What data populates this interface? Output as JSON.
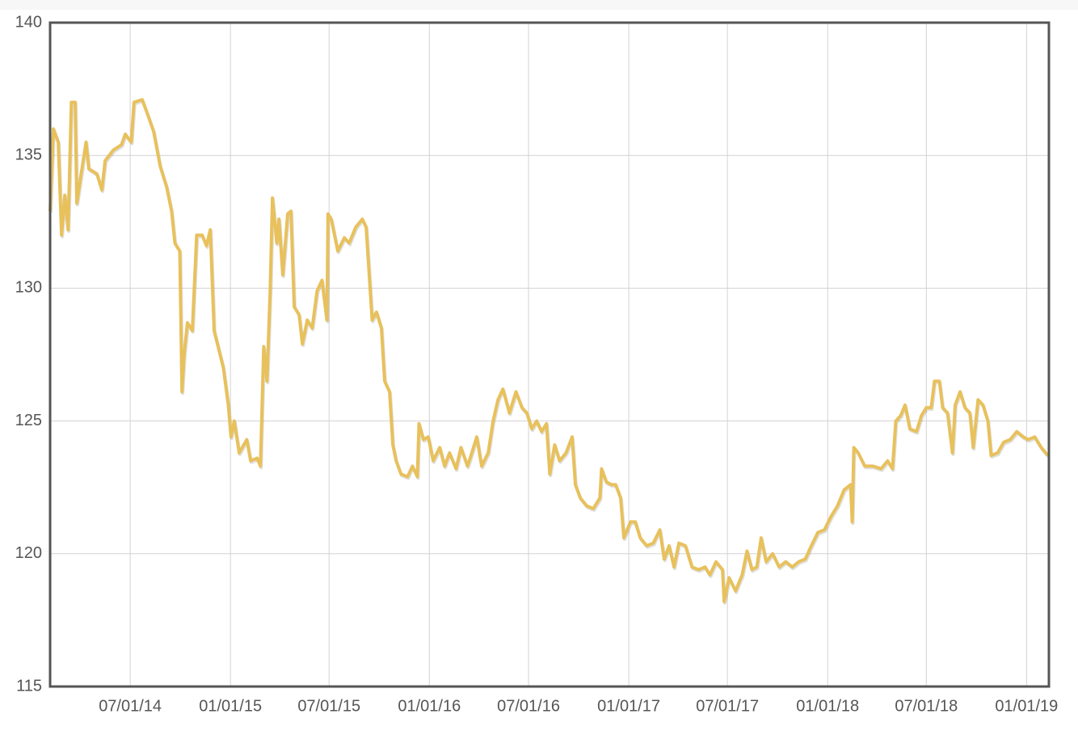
{
  "chart_data": {
    "type": "line",
    "color": "#e8c15c",
    "grid": true,
    "xlim": [
      "2014-02-04",
      "2019-02-11"
    ],
    "xticks": [
      {
        "value": "2014-07-01",
        "label": "07/01/14"
      },
      {
        "value": "2015-01-01",
        "label": "01/01/15"
      },
      {
        "value": "2015-07-01",
        "label": "07/01/15"
      },
      {
        "value": "2016-01-01",
        "label": "01/01/16"
      },
      {
        "value": "2016-07-01",
        "label": "07/01/16"
      },
      {
        "value": "2017-01-01",
        "label": "01/01/17"
      },
      {
        "value": "2017-07-01",
        "label": "07/01/17"
      },
      {
        "value": "2018-01-01",
        "label": "01/01/18"
      },
      {
        "value": "2018-07-01",
        "label": "07/01/18"
      },
      {
        "value": "2019-01-01",
        "label": "01/01/19"
      }
    ],
    "ylim": [
      115,
      140
    ],
    "yticks": [
      115,
      120,
      125,
      130,
      135,
      140
    ],
    "x": [
      "2014-02-04",
      "2014-02-10",
      "2014-02-19",
      "2014-02-25",
      "2014-03-03",
      "2014-03-09",
      "2014-03-15",
      "2014-03-22",
      "2014-03-25",
      "2014-04-02",
      "2014-04-11",
      "2014-04-16",
      "2014-05-01",
      "2014-05-10",
      "2014-05-16",
      "2014-05-31",
      "2014-06-15",
      "2014-06-22",
      "2014-07-03",
      "2014-07-08",
      "2014-07-23",
      "2014-08-01",
      "2014-08-13",
      "2014-08-25",
      "2014-09-06",
      "2014-09-15",
      "2014-09-21",
      "2014-09-30",
      "2014-10-04",
      "2014-10-08",
      "2014-10-14",
      "2014-10-23",
      "2014-10-31",
      "2014-11-10",
      "2014-11-18",
      "2014-11-25",
      "2014-12-02",
      "2014-12-13",
      "2014-12-19",
      "2014-12-28",
      "2015-01-02",
      "2015-01-08",
      "2015-01-17",
      "2015-01-31",
      "2015-02-07",
      "2015-02-19",
      "2015-02-25",
      "2015-03-03",
      "2015-03-09",
      "2015-03-15",
      "2015-03-19",
      "2015-03-27",
      "2015-03-31",
      "2015-04-07",
      "2015-04-16",
      "2015-04-22",
      "2015-04-28",
      "2015-05-07",
      "2015-05-13",
      "2015-05-22",
      "2015-05-31",
      "2015-06-09",
      "2015-06-18",
      "2015-06-27",
      "2015-06-29",
      "2015-07-05",
      "2015-07-17",
      "2015-07-29",
      "2015-08-07",
      "2015-08-19",
      "2015-08-31",
      "2015-09-07",
      "2015-09-18",
      "2015-09-26",
      "2015-10-05",
      "2015-10-11",
      "2015-10-20",
      "2015-10-26",
      "2015-11-01",
      "2015-11-10",
      "2015-11-22",
      "2015-12-01",
      "2015-12-10",
      "2015-12-13",
      "2015-12-21",
      "2015-12-30",
      "2016-01-08",
      "2016-01-20",
      "2016-01-29",
      "2016-02-07",
      "2016-02-19",
      "2016-02-28",
      "2016-03-11",
      "2016-03-19",
      "2016-03-28",
      "2016-04-06",
      "2016-04-18",
      "2016-04-27",
      "2016-05-06",
      "2016-05-15",
      "2016-05-27",
      "2016-06-08",
      "2016-06-19",
      "2016-06-28",
      "2016-07-07",
      "2016-07-16",
      "2016-07-25",
      "2016-08-03",
      "2016-08-09",
      "2016-08-18",
      "2016-08-27",
      "2016-09-08",
      "2016-09-19",
      "2016-09-25",
      "2016-10-04",
      "2016-10-16",
      "2016-10-28",
      "2016-11-09",
      "2016-11-12",
      "2016-11-21",
      "2016-11-30",
      "2016-12-08",
      "2016-12-17",
      "2016-12-23",
      "2017-01-04",
      "2017-01-13",
      "2017-01-22",
      "2017-02-03",
      "2017-02-15",
      "2017-02-27",
      "2017-03-07",
      "2017-03-16",
      "2017-03-25",
      "2017-04-03",
      "2017-04-15",
      "2017-04-27",
      "2017-05-09",
      "2017-05-21",
      "2017-05-30",
      "2017-06-10",
      "2017-06-22",
      "2017-06-25",
      "2017-07-04",
      "2017-07-16",
      "2017-07-28",
      "2017-08-06",
      "2017-08-15",
      "2017-08-24",
      "2017-09-01",
      "2017-09-10",
      "2017-09-22",
      "2017-10-04",
      "2017-10-16",
      "2017-10-28",
      "2017-11-09",
      "2017-11-21",
      "2017-12-02",
      "2017-12-14",
      "2017-12-26",
      "2018-01-07",
      "2018-01-19",
      "2018-01-31",
      "2018-02-12",
      "2018-02-15",
      "2018-02-18",
      "2018-02-26",
      "2018-03-10",
      "2018-03-25",
      "2018-04-09",
      "2018-04-21",
      "2018-04-30",
      "2018-05-06",
      "2018-05-15",
      "2018-05-23",
      "2018-06-01",
      "2018-06-13",
      "2018-06-22",
      "2018-07-01",
      "2018-07-10",
      "2018-07-16",
      "2018-07-25",
      "2018-07-31",
      "2018-08-09",
      "2018-08-18",
      "2018-08-23",
      "2018-09-01",
      "2018-09-10",
      "2018-09-19",
      "2018-09-25",
      "2018-10-04",
      "2018-10-13",
      "2018-10-22",
      "2018-10-28",
      "2018-11-09",
      "2018-11-20",
      "2018-12-02",
      "2018-12-14",
      "2018-12-26",
      "2019-01-04",
      "2019-01-16",
      "2019-01-28",
      "2019-02-09"
    ],
    "values": [
      132.9,
      136,
      135.5,
      132,
      133.5,
      132.2,
      137,
      137,
      133.2,
      134.3,
      135.5,
      134.5,
      134.3,
      133.7,
      134.8,
      135.2,
      135.4,
      135.8,
      135.5,
      137,
      137.1,
      136.6,
      135.9,
      134.6,
      133.8,
      132.9,
      131.7,
      131.4,
      126.1,
      127.5,
      128.7,
      128.4,
      132,
      132,
      131.6,
      132.2,
      128.4,
      127.5,
      127,
      125.6,
      124.4,
      125,
      123.8,
      124.3,
      123.5,
      123.6,
      123.3,
      127.8,
      126.5,
      130,
      133.4,
      131.7,
      132.6,
      130.5,
      132.8,
      132.9,
      129.3,
      129,
      127.9,
      128.8,
      128.5,
      129.9,
      130.3,
      128.8,
      132.8,
      132.6,
      131.4,
      131.9,
      131.7,
      132.3,
      132.6,
      132.3,
      128.8,
      129.1,
      128.5,
      126.5,
      126.1,
      124.1,
      123.5,
      123,
      122.9,
      123.3,
      122.9,
      124.9,
      124.3,
      124.4,
      123.5,
      124,
      123.3,
      123.8,
      123.2,
      124,
      123.3,
      123.8,
      124.4,
      123.3,
      123.8,
      125,
      125.8,
      126.2,
      125.3,
      126.1,
      125.5,
      125.3,
      124.7,
      125,
      124.6,
      124.9,
      123,
      124.1,
      123.5,
      123.8,
      124.4,
      122.6,
      122.1,
      121.8,
      121.7,
      122.1,
      123.2,
      122.7,
      122.6,
      122.6,
      122.1,
      120.6,
      121.2,
      121.2,
      120.6,
      120.3,
      120.4,
      120.9,
      119.8,
      120.3,
      119.5,
      120.4,
      120.3,
      119.5,
      119.4,
      119.5,
      119.2,
      119.7,
      119.4,
      118.2,
      119.1,
      118.6,
      119.2,
      120.1,
      119.4,
      119.5,
      120.6,
      119.7,
      120,
      119.5,
      119.7,
      119.5,
      119.7,
      119.8,
      120.3,
      120.8,
      120.9,
      121.4,
      121.8,
      122.4,
      122.6,
      121.2,
      124,
      123.8,
      123.3,
      123.3,
      123.2,
      123.5,
      123.2,
      125,
      125.2,
      125.6,
      124.7,
      124.6,
      125.2,
      125.5,
      125.5,
      126.5,
      126.5,
      125.5,
      125.3,
      123.8,
      125.6,
      126.1,
      125.5,
      125.3,
      124,
      125.8,
      125.6,
      125,
      123.7,
      123.8,
      124.2,
      124.3,
      124.6,
      124.4,
      124.3,
      124.4,
      124,
      123.7
    ]
  }
}
